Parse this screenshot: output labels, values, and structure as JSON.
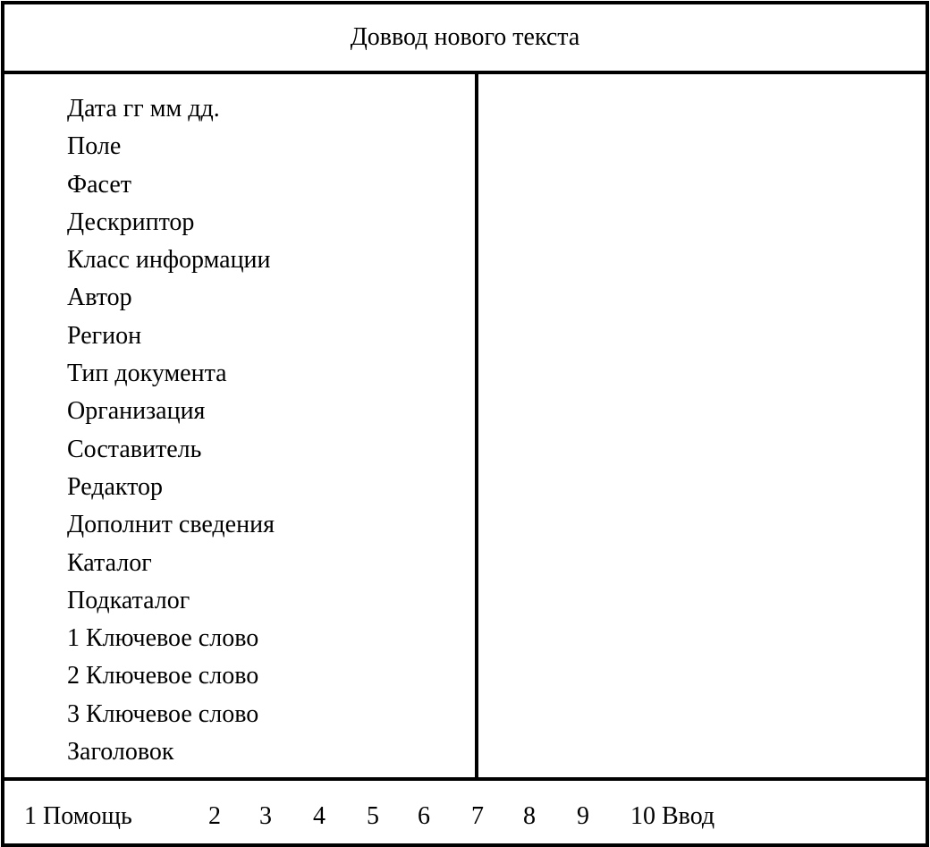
{
  "title": "Доввод нового текста",
  "fields": [
    "Дата гг мм дд.",
    "Поле",
    "Фасет",
    "Дескриптор",
    "Класс информации",
    "Автор",
    "Регион",
    "Тип документа",
    "Организация",
    "Составитель",
    "Редактор",
    "Дополнит  сведения",
    "Каталог",
    "Подкаталог",
    "1 Ключевое слово",
    "2 Ключевое слово",
    "3 Ключевое слово",
    "Заголовок"
  ],
  "function_keys": [
    "1 Помощь",
    "2",
    "3",
    "4",
    "5",
    "6",
    "7",
    "8",
    "9",
    "10 Ввод"
  ]
}
